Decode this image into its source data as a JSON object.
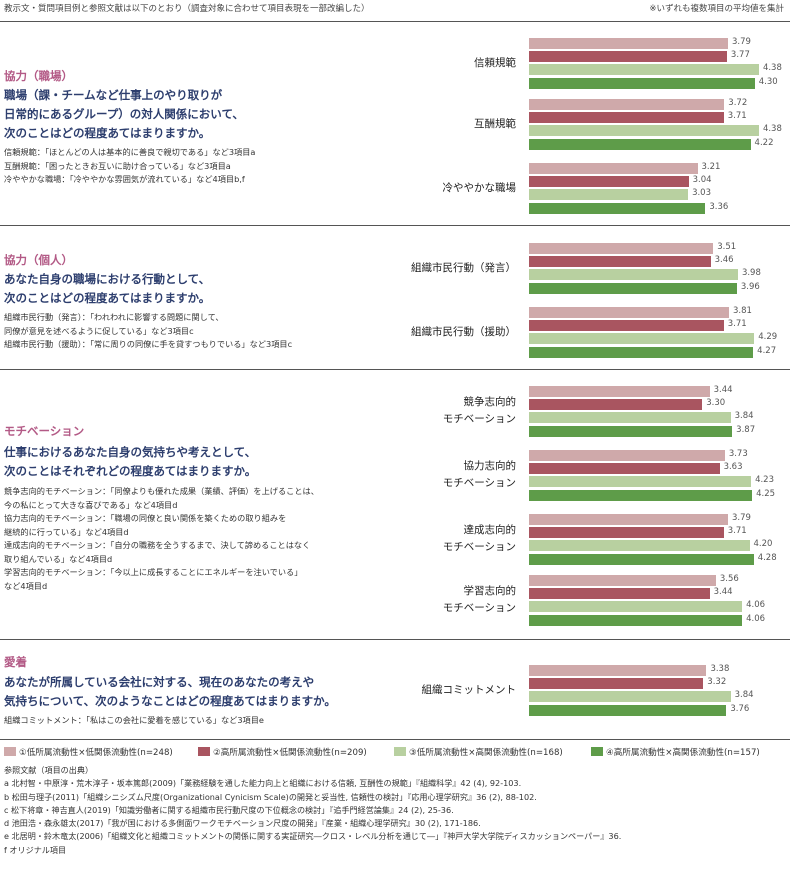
{
  "header": {
    "left": "教示文・質問項目例と参照文献は以下のとおり（調査対象に合わせて項目表現を一部改編した）",
    "right": "※いずれも複数項目の平均値を集計"
  },
  "colors": [
    "#cfa9aa",
    "#a95560",
    "#b8d0a0",
    "#5e9c49"
  ],
  "sections": [
    {
      "title": "協力（職場）",
      "question": [
        "職場（課・チームなど仕事上のやり取りが",
        "日常的にあるグループ）の対人関係において、",
        "次のことはどの程度あてはまりますか。"
      ],
      "notes": [
        "信頼規範：「ほとんどの人は基本的に善良で親切である」など3項目a",
        "互酬規範：「困ったときお互いに助け合っている」など3項目a",
        "冷ややかな職場：「冷ややかな雰囲気が流れている」など4項目b,f"
      ]
    },
    {
      "title": "協力（個人）",
      "question": [
        "あなた自身の職場における行動として、",
        "次のことはどの程度あてはまりますか。"
      ],
      "notes": [
        "組織市民行動（発言）：「われわれに影響する問題に関して、",
        "同僚が意見を述べるように促している」など3項目c",
        "組織市民行動（援助）：「常に周りの同僚に手を貸すつもりでいる」など3項目c"
      ]
    },
    {
      "title": "モチベーション",
      "question": [
        "仕事におけるあなた自身の気持ちや考えとして、",
        "次のことはそれぞれどの程度あてはまりますか。"
      ],
      "notes": [
        "競争志向的モチベーション：「同僚よりも優れた成果（業績、評価）を上げることは、",
        "今の私にとって大きな喜びである」など4項目d",
        "協力志向的モチベーション：「職場の同僚と良い関係を築くための取り組みを",
        "継続的に行っている」など4項目d",
        "達成志向的モチベーション：「自分の職務を全うするまで、決して諦めることはなく",
        "取り組んでいる」など4項目d",
        "学習志向的モチベーション：「今以上に成長することにエネルギーを注いでいる」",
        "など4項目d"
      ]
    },
    {
      "title": "愛着",
      "question": [
        "あなたが所属している会社に対する、現在のあなたの考えや",
        "気持ちについて、次のようなことはどの程度あてはまりますか。"
      ],
      "notes": [
        "組織コミットメント：「私はこの会社に愛着を感じている」など3項目e"
      ]
    }
  ],
  "chart_data": {
    "type": "bar",
    "orientation": "horizontal",
    "series": [
      {
        "name": "①低所属流動性×低関係流動性(n=248)",
        "values": [
          3.79,
          3.72,
          3.21,
          3.51,
          3.81,
          3.44,
          3.73,
          3.79,
          3.56,
          3.38
        ]
      },
      {
        "name": "②高所属流動性×低関係流動性(n=209)",
        "values": [
          3.77,
          3.71,
          3.04,
          3.46,
          3.71,
          3.3,
          3.63,
          3.71,
          3.44,
          3.32
        ]
      },
      {
        "name": "③低所属流動性×高関係流動性(n=168)",
        "values": [
          4.38,
          4.38,
          3.03,
          3.98,
          4.29,
          3.84,
          4.23,
          4.2,
          4.06,
          3.84
        ]
      },
      {
        "name": "④高所属流動性×高関係流動性(n=157)",
        "values": [
          4.3,
          4.22,
          3.36,
          3.96,
          4.27,
          3.87,
          4.25,
          4.28,
          4.06,
          3.76
        ]
      }
    ],
    "categories": [
      [
        "信頼規範"
      ],
      [
        "互酬規範"
      ],
      [
        "冷ややかな職場"
      ],
      [
        "組織市民行動（発言）"
      ],
      [
        "組織市民行動（援助）"
      ],
      [
        "競争志向的",
        "モチベーション"
      ],
      [
        "協力志向的",
        "モチベーション"
      ],
      [
        "達成志向的",
        "モチベーション"
      ],
      [
        "学習志向的",
        "モチベーション"
      ],
      [
        "組織コミットメント"
      ]
    ],
    "value_labels": [
      [
        "3.79",
        "3.77",
        "4.38",
        "4.30"
      ],
      [
        "3.72",
        "3.71",
        "4.38",
        "4.22"
      ],
      [
        "3.21",
        "3.04",
        "3.03",
        "3.36"
      ],
      [
        "3.51",
        "3.46",
        "3.98",
        "3.96"
      ],
      [
        "3.81",
        "3.71",
        "4.29",
        "4.27"
      ],
      [
        "3.44",
        "3.30",
        "3.84",
        "3.87"
      ],
      [
        "3.73",
        "3.63",
        "4.23",
        "4.25"
      ],
      [
        "3.79",
        "3.71",
        "4.20",
        "4.28"
      ],
      [
        "3.56",
        "3.44",
        "4.06",
        "4.06"
      ],
      [
        "3.38",
        "3.32",
        "3.84",
        "3.76"
      ]
    ],
    "xlim": [
      0,
      4.7
    ]
  },
  "references": {
    "title": "参照文献（項目の出典）",
    "items": [
      "a 北村智・中原淳・荒木淳子・坂本篤郎(2009)「業務経験を通した能力向上と組織における信頼, 互酬性の規範」『組織科学』42 (4), 92-103.",
      "b 松田与理子(2011)「組織シニシズム尺度(Organizational Cynicism Scale)の開発と妥当性, 信頼性の検討」『応用心理学研究』36 (2), 88-102.",
      "c 松下将章・神吉直人(2019)「知識労働者に関する組織市民行動尺度の下位概念の検討」『追手門経営論集』24 (2), 25-36.",
      "d 池田浩・森永雄太(2017)「我が国における多側面ワークモチベーション尺度の開発」『産業・組織心理学研究』30 (2), 171-186.",
      "e 北居明・鈴木竜太(2006)「組織文化と組織コミットメントの関係に関する実証研究―クロス・レベル分析を通じて―」『神戸大学大学院ディスカッションペーパー』36.",
      "f オリジナル項目"
    ]
  }
}
